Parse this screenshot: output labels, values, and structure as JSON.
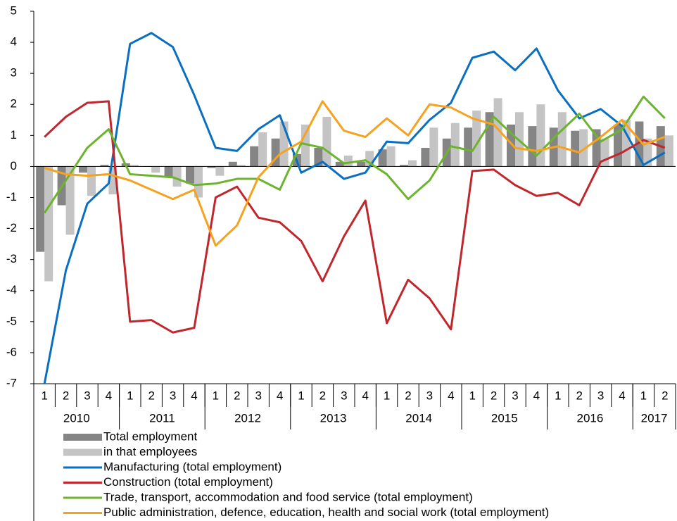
{
  "chart_data": {
    "type": "combo",
    "categories": [
      "1",
      "2",
      "3",
      "4",
      "1",
      "2",
      "3",
      "4",
      "1",
      "2",
      "3",
      "4",
      "1",
      "2",
      "3",
      "4",
      "1",
      "2",
      "3",
      "4",
      "1",
      "2",
      "3",
      "4",
      "1",
      "2",
      "3",
      "4",
      "1",
      "2"
    ],
    "groups": [
      "2010",
      "2011",
      "2012",
      "2013",
      "2014",
      "2015",
      "2016",
      "2017"
    ],
    "ylim": [
      -7,
      5
    ],
    "yticks": [
      -7,
      -6,
      -5,
      -4,
      -3,
      -2,
      -1,
      0,
      1,
      2,
      3,
      4,
      5
    ],
    "series": [
      {
        "name": "Total employment",
        "type": "bar",
        "color": "#858585",
        "values": [
          -2.75,
          -1.25,
          -0.2,
          0.05,
          0.1,
          0.0,
          -0.35,
          -0.55,
          -0.05,
          0.15,
          0.65,
          0.9,
          0.4,
          0.6,
          0.15,
          0.15,
          0.55,
          0.05,
          0.6,
          0.9,
          1.25,
          1.75,
          1.35,
          1.3,
          1.25,
          1.15,
          1.2,
          1.35,
          1.45,
          1.3
        ]
      },
      {
        "name": "in that employees",
        "type": "bar",
        "color": "#c4c4c4",
        "values": [
          -3.7,
          -2.2,
          -0.95,
          -0.9,
          0.05,
          -0.2,
          -0.65,
          -1.0,
          -0.3,
          0.05,
          1.1,
          1.45,
          1.35,
          1.6,
          0.35,
          0.5,
          0.65,
          0.2,
          1.25,
          1.4,
          1.8,
          2.2,
          1.75,
          2.0,
          1.75,
          1.2,
          0.9,
          1.5,
          0.9,
          1.0
        ]
      },
      {
        "name": "Manufacturing (total employment)",
        "type": "line",
        "color": "#0a6fc0",
        "values": [
          -7.0,
          -3.35,
          -1.2,
          -0.55,
          3.95,
          4.3,
          3.85,
          2.3,
          0.6,
          0.5,
          1.2,
          1.65,
          -0.2,
          0.15,
          -0.4,
          -0.2,
          0.8,
          0.75,
          1.5,
          2.05,
          3.5,
          3.7,
          3.1,
          3.8,
          2.45,
          1.55,
          1.85,
          1.3,
          0.05,
          0.45
        ]
      },
      {
        "name": "Construction (total employment)",
        "type": "line",
        "color": "#c0272d",
        "values": [
          0.95,
          1.6,
          2.05,
          2.1,
          -5.0,
          -4.95,
          -5.35,
          -5.2,
          -1.0,
          -0.65,
          -1.65,
          -1.8,
          -2.4,
          -3.7,
          -2.25,
          -1.1,
          -5.05,
          -3.65,
          -4.25,
          -5.25,
          -0.15,
          -0.1,
          -0.6,
          -0.95,
          -0.85,
          -1.25,
          0.15,
          0.45,
          0.85,
          0.6
        ]
      },
      {
        "name": "Trade, transport, accommodation and food service (total employment)",
        "type": "line",
        "color": "#6cb42e",
        "values": [
          -1.5,
          -0.45,
          0.6,
          1.2,
          -0.25,
          -0.3,
          -0.35,
          -0.6,
          -0.55,
          -0.4,
          -0.4,
          -0.75,
          0.75,
          0.6,
          0.1,
          0.2,
          -0.25,
          -1.05,
          -0.45,
          0.65,
          0.5,
          1.6,
          0.95,
          0.35,
          1.05,
          1.7,
          0.8,
          1.2,
          2.25,
          1.55
        ]
      },
      {
        "name": "Public administration, defence, education, health and social work (total employment)",
        "type": "line",
        "color": "#f6a21e",
        "values": [
          -0.05,
          -0.25,
          -0.3,
          -0.25,
          -0.45,
          -0.75,
          -1.05,
          -0.75,
          -2.55,
          -1.9,
          -0.35,
          0.4,
          0.8,
          2.1,
          1.15,
          0.95,
          1.55,
          1.0,
          2.0,
          1.9,
          1.55,
          1.35,
          0.6,
          0.5,
          0.65,
          0.45,
          0.95,
          1.5,
          0.7,
          0.95
        ]
      }
    ]
  }
}
